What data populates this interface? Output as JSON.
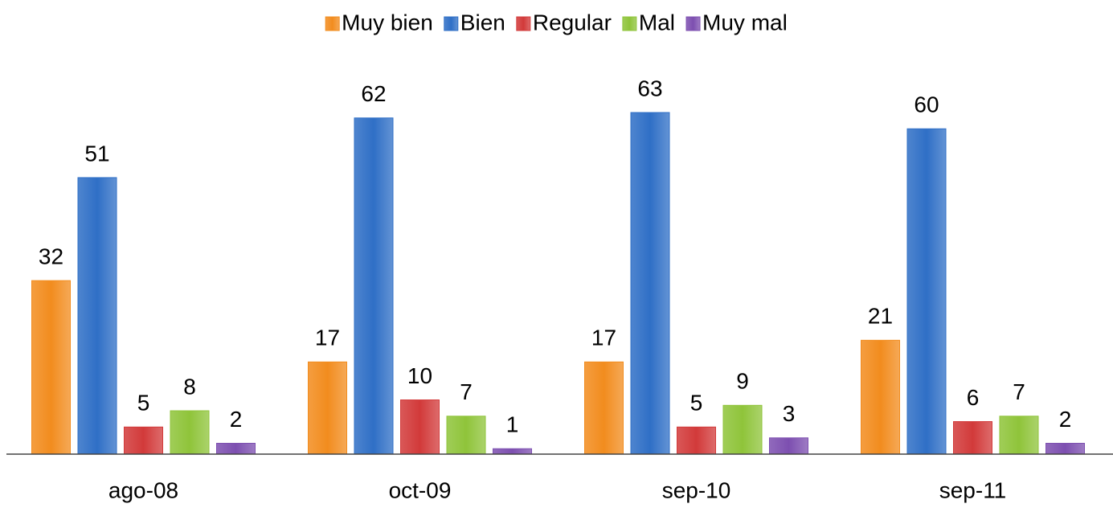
{
  "chart_data": {
    "type": "bar",
    "categories": [
      "ago-08",
      "oct-09",
      "sep-10",
      "sep-11"
    ],
    "series": [
      {
        "name": "Muy bien",
        "color": "#f28c1e",
        "values": [
          32,
          17,
          17,
          21
        ]
      },
      {
        "name": "Bien",
        "color": "#2f6fc6",
        "values": [
          51,
          62,
          63,
          60
        ]
      },
      {
        "name": "Regular",
        "color": "#d23a3a",
        "values": [
          5,
          10,
          5,
          6
        ]
      },
      {
        "name": "Mal",
        "color": "#8fc43a",
        "values": [
          8,
          7,
          9,
          7
        ]
      },
      {
        "name": "Muy mal",
        "color": "#7d4fb0",
        "values": [
          2,
          1,
          3,
          2
        ]
      }
    ],
    "legend": "top"
  }
}
